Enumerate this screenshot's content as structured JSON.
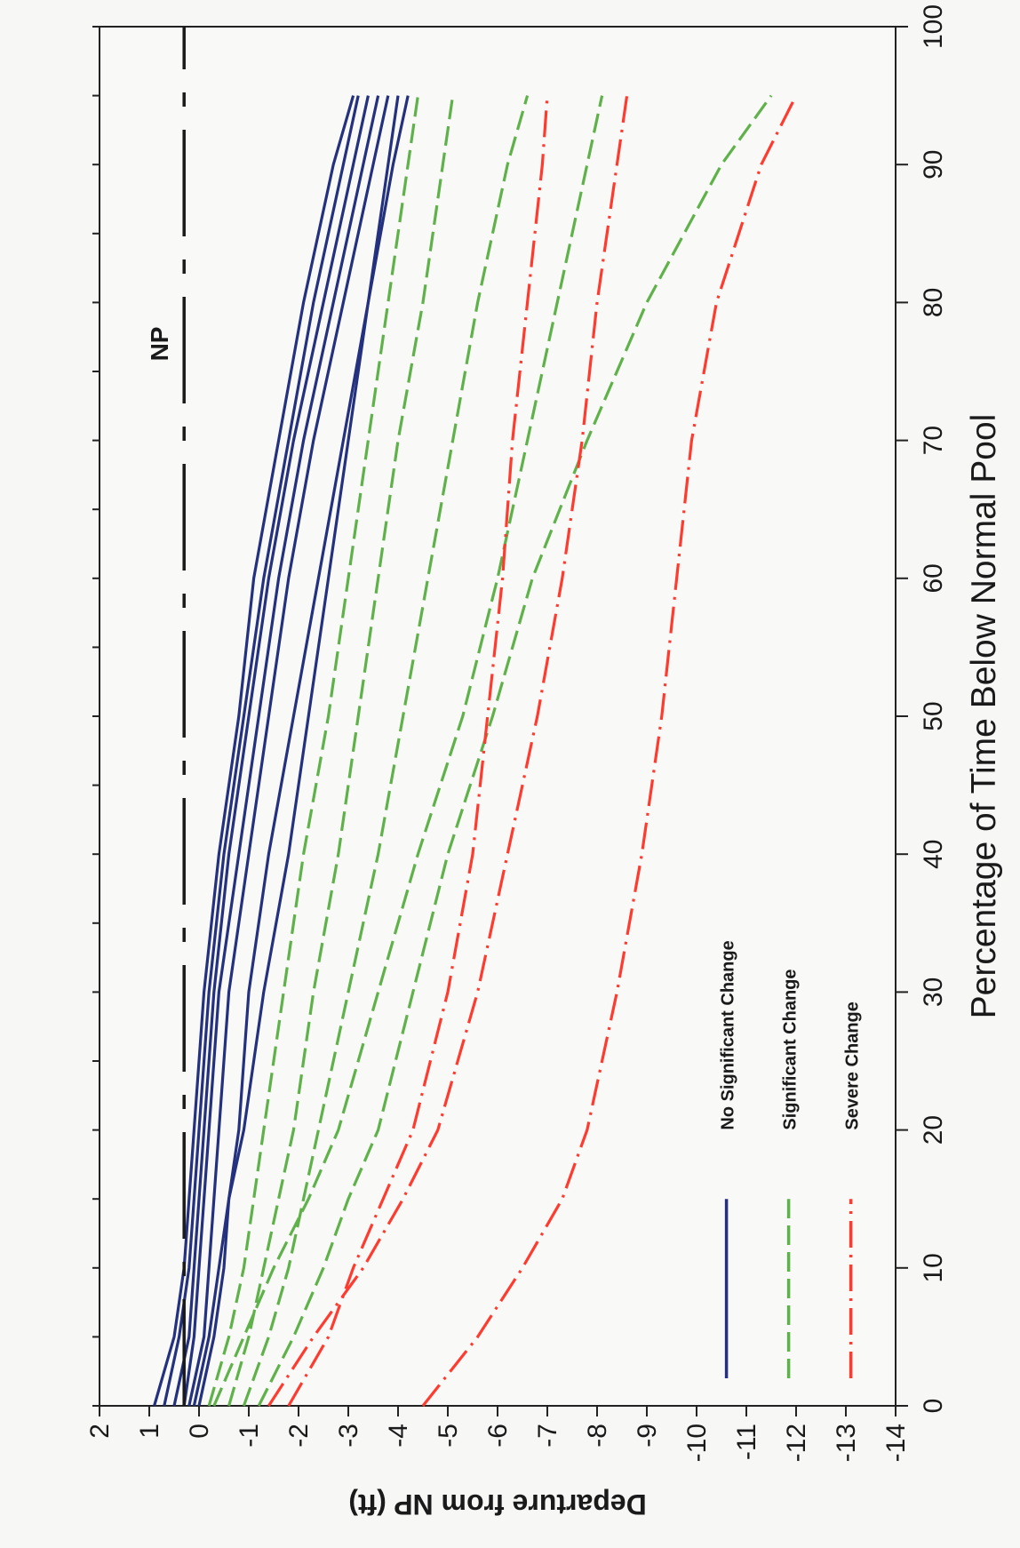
{
  "chart_data": {
    "type": "line",
    "xlabel": "Percentage of Time Below  Normal Pool",
    "ylabel": "Departure from NP (ft)",
    "xlim": [
      0,
      100
    ],
    "ylim": [
      -14,
      2
    ],
    "x_ticks": [
      "0",
      "10",
      "20",
      "30",
      "40",
      "50",
      "60",
      "70",
      "80",
      "90",
      "100"
    ],
    "y_ticks": [
      "2",
      "1",
      "0",
      "-1",
      "-2",
      "-3",
      "-4",
      "-5",
      "-6",
      "-7",
      "-8",
      "-9",
      "-10",
      "-11",
      "-12",
      "-13",
      "-14"
    ],
    "np_line": {
      "label": "NP",
      "value": 0.3,
      "color": "#1a1a1a"
    },
    "legend": {
      "placement": "bottom-right",
      "entries": [
        {
          "group": "none",
          "label": "No Significant Change"
        },
        {
          "group": "significant",
          "label": "Significant Change"
        },
        {
          "group": "severe",
          "label": "Severe Change"
        }
      ]
    },
    "groups": {
      "none": {
        "color": "#24317f",
        "dash": "none"
      },
      "significant": {
        "color": "#5fb14a",
        "dash": "22,8"
      },
      "severe": {
        "color": "#ff3b2f",
        "dash": "30,8,3,8"
      }
    },
    "x": [
      0,
      5,
      10,
      15,
      20,
      30,
      40,
      50,
      60,
      70,
      80,
      90,
      95
    ],
    "series": [
      {
        "group": "none",
        "values": [
          0.9,
          0.5,
          0.3,
          0.2,
          0.1,
          -0.1,
          -0.4,
          -0.8,
          -1.1,
          -1.6,
          -2.1,
          -2.7,
          -3.1
        ]
      },
      {
        "group": "none",
        "values": [
          0.7,
          0.4,
          0.2,
          0.1,
          0.0,
          -0.2,
          -0.5,
          -0.9,
          -1.3,
          -1.8,
          -2.3,
          -2.9,
          -3.2
        ]
      },
      {
        "group": "none",
        "values": [
          0.5,
          0.2,
          0.1,
          0.0,
          -0.1,
          -0.3,
          -0.6,
          -1.0,
          -1.4,
          -1.9,
          -2.5,
          -3.1,
          -3.4
        ]
      },
      {
        "group": "none",
        "values": [
          0.3,
          0.1,
          0.0,
          -0.1,
          -0.2,
          -0.4,
          -0.8,
          -1.2,
          -1.6,
          -2.1,
          -2.7,
          -3.3,
          -3.6
        ]
      },
      {
        "group": "none",
        "values": [
          0.2,
          -0.1,
          -0.2,
          -0.3,
          -0.4,
          -0.6,
          -1.0,
          -1.4,
          -1.8,
          -2.3,
          -2.9,
          -3.5,
          -3.8
        ]
      },
      {
        "group": "none",
        "values": [
          0.0,
          -0.3,
          -0.5,
          -0.6,
          -0.8,
          -1.0,
          -1.4,
          -1.9,
          -2.4,
          -2.9,
          -3.4,
          -3.9,
          -4.2
        ]
      },
      {
        "group": "none",
        "values": [
          0.1,
          -0.2,
          -0.4,
          -0.6,
          -0.9,
          -1.3,
          -1.8,
          -2.2,
          -2.6,
          -3.0,
          -3.4,
          -3.8,
          -4.0
        ]
      },
      {
        "group": "significant",
        "values": [
          -0.2,
          -0.6,
          -0.9,
          -1.1,
          -1.3,
          -1.7,
          -2.1,
          -2.6,
          -3.0,
          -3.4,
          -3.8,
          -4.2,
          -4.4
        ]
      },
      {
        "group": "significant",
        "values": [
          -0.6,
          -1.0,
          -1.3,
          -1.6,
          -1.9,
          -2.3,
          -2.8,
          -3.2,
          -3.6,
          -4.0,
          -4.5,
          -4.9,
          -5.1
        ]
      },
      {
        "group": "significant",
        "values": [
          -0.9,
          -1.4,
          -1.8,
          -2.1,
          -2.4,
          -3.0,
          -3.6,
          -4.1,
          -4.6,
          -5.1,
          -5.6,
          -6.2,
          -6.6
        ]
      },
      {
        "group": "significant",
        "values": [
          -0.3,
          -0.9,
          -1.5,
          -2.2,
          -2.8,
          -3.6,
          -4.4,
          -5.3,
          -6.0,
          -6.6,
          -7.2,
          -7.8,
          -8.1
        ]
      },
      {
        "group": "significant",
        "values": [
          -1.2,
          -1.9,
          -2.5,
          -3.0,
          -3.6,
          -4.3,
          -5.0,
          -5.9,
          -6.7,
          -7.8,
          -9.0,
          -10.5,
          -11.5
        ]
      },
      {
        "group": "severe",
        "values": [
          -1.4,
          -2.3,
          -3.3,
          -4.1,
          -4.8,
          -5.6,
          -6.2,
          -6.8,
          -7.3,
          -7.7,
          -8.0,
          -8.4,
          -8.6
        ]
      },
      {
        "group": "severe",
        "values": [
          -1.8,
          -2.6,
          -3.1,
          -3.7,
          -4.3,
          -5.0,
          -5.5,
          -5.8,
          -6.1,
          -6.3,
          -6.6,
          -6.9,
          -7.0
        ]
      },
      {
        "group": "severe",
        "values": [
          -4.5,
          -5.6,
          -6.5,
          -7.3,
          -7.8,
          -8.4,
          -8.9,
          -9.3,
          -9.6,
          -9.9,
          -10.4,
          -11.3,
          -12.0
        ]
      }
    ]
  }
}
